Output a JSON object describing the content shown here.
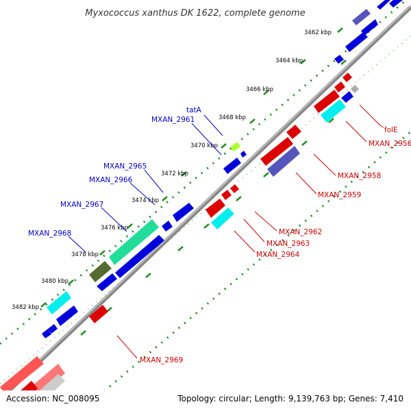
{
  "title": "Myxococcus xanthus DK 1622, complete genome",
  "footer": {
    "accession": "Accession: NC_008095",
    "summary": "Topology: circular; Length: 9,139,763 bp; Genes: 7,410"
  },
  "ticks": [
    {
      "label": "3462 kbp"
    },
    {
      "label": "3464 kbp"
    },
    {
      "label": "3466 kbp"
    },
    {
      "label": "3468 kbp"
    },
    {
      "label": "3470 kbp"
    },
    {
      "label": "3472 kbp"
    },
    {
      "label": "3474 kbp"
    },
    {
      "label": "3476 kbp"
    },
    {
      "label": "3478 kbp"
    },
    {
      "label": "3480 kbp"
    },
    {
      "label": "3482 kbp"
    }
  ],
  "genes_forward": [
    {
      "label": "tatA",
      "color": "#adff2f"
    },
    {
      "label": "MXAN_2961",
      "color": "#0000dd"
    },
    {
      "label": "MXAN_2965",
      "color": "#0000dd"
    },
    {
      "label": "MXAN_2966",
      "color": "#0000dd"
    },
    {
      "label": "MXAN_2967",
      "color": "#0000dd"
    },
    {
      "label": "MXAN_2968",
      "color": "#0000dd"
    }
  ],
  "genes_reverse": [
    {
      "label": "folE",
      "color": "#dd0000"
    },
    {
      "label": "MXAN_2956",
      "color": "#dd0000"
    },
    {
      "label": "MXAN_2958",
      "color": "#dd0000"
    },
    {
      "label": "MXAN_2959",
      "color": "#dd0000"
    },
    {
      "label": "MXAN_2962",
      "color": "#dd0000"
    },
    {
      "label": "MXAN_2963",
      "color": "#dd0000"
    },
    {
      "label": "MXAN_2964",
      "color": "#dd0000"
    },
    {
      "label": "MXAN_2969",
      "color": "#dd0000"
    }
  ],
  "colors": {
    "backbone": "#777777",
    "tick_dots": "#228b22",
    "forward_label": "#0000cc",
    "reverse_label": "#cc0000",
    "cds_blue": "#0000dd",
    "cds_red": "#dd0000",
    "cds_cyan": "#00eeee",
    "cds_green": "#22dd99",
    "cds_olive": "#556b2f",
    "cds_slate": "#5555bb",
    "cds_grey": "#aaaaaa",
    "cds_lime": "#adff2f"
  }
}
